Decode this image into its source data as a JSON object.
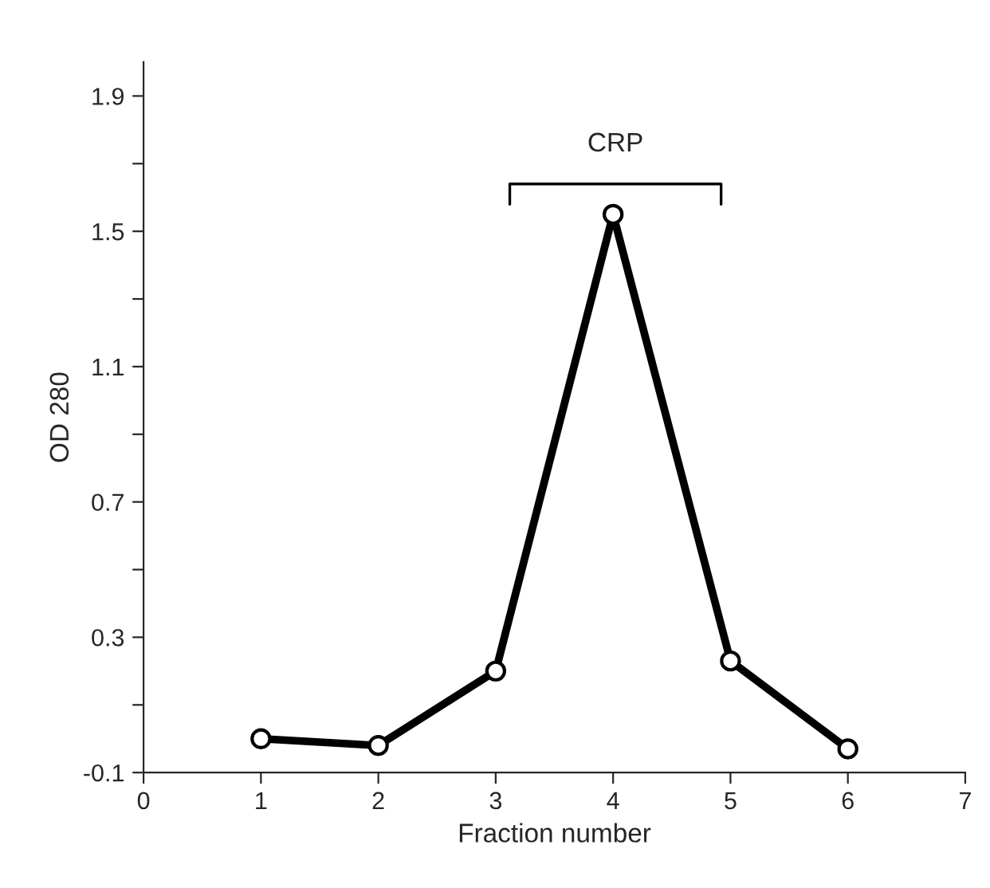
{
  "chart_data": {
    "type": "line",
    "xlabel": "Fraction number",
    "ylabel": "OD 280",
    "x": [
      1,
      2,
      3,
      4,
      5,
      6
    ],
    "series": [
      {
        "color": "#000000",
        "values": [
          0.0,
          -0.02,
          0.2,
          1.55,
          0.23,
          -0.03
        ]
      }
    ],
    "xlim": [
      0,
      7
    ],
    "xticks": [
      0,
      1,
      2,
      3,
      4,
      5,
      6,
      7
    ],
    "ylim": [
      -0.1,
      2.0
    ],
    "yticks": [
      -0.1,
      {
        "value": 0.1,
        "label": null
      },
      0.3,
      {
        "value": 0.5,
        "label": null
      },
      0.7,
      {
        "value": 0.9,
        "label": null
      },
      1.1,
      {
        "value": 1.3,
        "label": null
      },
      1.5,
      {
        "value": 1.7,
        "label": null
      },
      1.9
    ],
    "annotations": [
      "CRP"
    ],
    "marker": "circle",
    "line_style": "solid",
    "grid": false,
    "legend": false
  }
}
